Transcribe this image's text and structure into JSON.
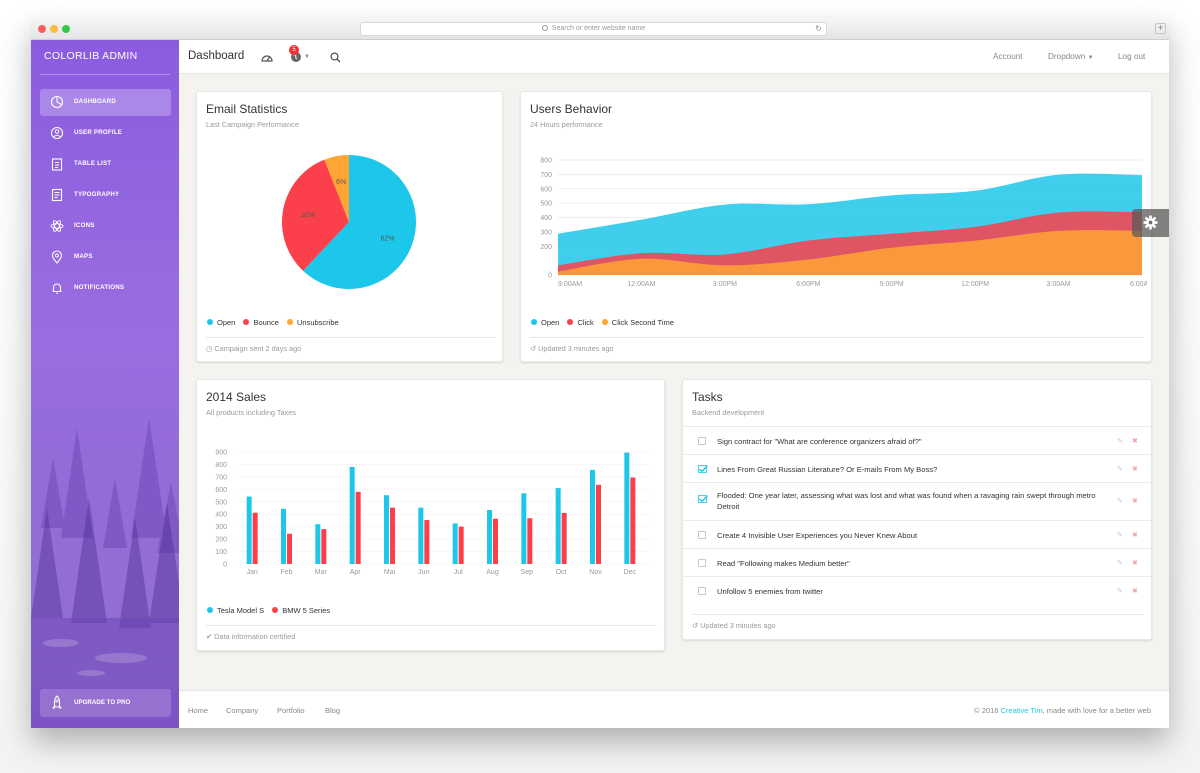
{
  "browser": {
    "address_placeholder": "Search or enter website name"
  },
  "sidebar": {
    "brand": "COLORLIB ADMIN",
    "items": [
      {
        "label": "DASHBOARD",
        "icon": "pie-chart-icon",
        "active": true
      },
      {
        "label": "USER PROFILE",
        "icon": "user-icon"
      },
      {
        "label": "TABLE LIST",
        "icon": "clipboard-icon"
      },
      {
        "label": "TYPOGRAPHY",
        "icon": "note-icon"
      },
      {
        "label": "ICONS",
        "icon": "atom-icon"
      },
      {
        "label": "MAPS",
        "icon": "pin-icon"
      },
      {
        "label": "NOTIFICATIONS",
        "icon": "bell-icon"
      }
    ],
    "upgrade_label": "UPGRADE TO PRO"
  },
  "topnav": {
    "title": "Dashboard",
    "notification_count": "5",
    "account": "Account",
    "dropdown": "Dropdown",
    "logout": "Log out"
  },
  "email_stats": {
    "title": "Email Statistics",
    "subtitle": "Last Campaign Performance",
    "footer": "Campaign sent 2 days ago",
    "chart_data": {
      "type": "pie",
      "labels": [
        "Open",
        "Bounce",
        "Unsubscribe"
      ],
      "values": [
        62,
        32,
        6
      ],
      "value_labels": [
        "62%",
        "32%",
        "6%"
      ],
      "colors": [
        "#1dc7ea",
        "#fb404b",
        "#ffa534"
      ],
      "legend": [
        "Open",
        "Bounce",
        "Unsubscribe"
      ]
    }
  },
  "users_behavior": {
    "title": "Users Behavior",
    "subtitle": "24 Hours performance",
    "footer": "Updated 3 minutes ago",
    "chart_data": {
      "type": "area",
      "x": [
        "9:00AM",
        "12:00AM",
        "3:00PM",
        "6:00PM",
        "9:00PM",
        "12:00PM",
        "3:00AM",
        "6:00AM"
      ],
      "y_ticks": [
        "800",
        "700",
        "600",
        "500",
        "400",
        "300",
        "200",
        "0"
      ],
      "ylim": [
        0,
        800
      ],
      "series": [
        {
          "name": "Open",
          "color": "#1dc7ea",
          "values": [
            287,
            385,
            490,
            492,
            554,
            586,
            698,
            695
          ]
        },
        {
          "name": "Click",
          "color": "#fb404b",
          "values": [
            67,
            152,
            143,
            240,
            287,
            335,
            435,
            437
          ]
        },
        {
          "name": "Click Second Time",
          "color": "#ffa534",
          "values": [
            23,
            113,
            67,
            108,
            190,
            239,
            307,
            308
          ]
        }
      ],
      "legend": [
        "Open",
        "Click",
        "Click Second Time"
      ],
      "grid": true
    }
  },
  "sales": {
    "title": "2014 Sales",
    "subtitle": "All products including Taxes",
    "footer": "Data information certified",
    "chart_data": {
      "type": "bar",
      "categories": [
        "Jan",
        "Feb",
        "Mar",
        "Apr",
        "Mai",
        "Jun",
        "Jul",
        "Aug",
        "Sep",
        "Oct",
        "Nov",
        "Dec"
      ],
      "y_ticks": [
        "900",
        "800",
        "700",
        "600",
        "500",
        "400",
        "300",
        "200",
        "100",
        "0"
      ],
      "ylim": [
        0,
        900
      ],
      "series": [
        {
          "name": "Tesla Model S",
          "color": "#1dc7ea",
          "values": [
            542,
            443,
            320,
            780,
            553,
            453,
            326,
            434,
            568,
            610,
            756,
            895
          ]
        },
        {
          "name": "BMW 5 Series",
          "color": "#fb404b",
          "values": [
            412,
            243,
            280,
            580,
            453,
            353,
            300,
            364,
            368,
            410,
            636,
            695
          ]
        }
      ],
      "legend": [
        "Tesla Model S",
        "BMW 5 Series"
      ],
      "grid": true
    }
  },
  "tasks": {
    "title": "Tasks",
    "subtitle": "Backend development",
    "footer": "Updated 3 minutes ago",
    "items": [
      {
        "text": "Sign contract for \"What are conference organizers afraid of?\"",
        "checked": false
      },
      {
        "text": "Lines From Great Russian Literature? Or E-mails From My Boss?",
        "checked": true
      },
      {
        "text": "Flooded: One year later, assessing what was lost and what was found when a ravaging rain swept through metro Detroit",
        "checked": true
      },
      {
        "text": "Create 4 Invisible User Experiences you Never Knew About",
        "checked": false
      },
      {
        "text": "Read \"Following makes Medium better\"",
        "checked": false
      },
      {
        "text": "Unfollow 5 enemies from twitter",
        "checked": false
      }
    ]
  },
  "footer": {
    "links": [
      "Home",
      "Company",
      "Portfolio",
      "Blog"
    ],
    "copyright_prefix": "© 2016",
    "copyright_link": "Creative Tim",
    "copyright_suffix": ", made with love for a better web"
  }
}
